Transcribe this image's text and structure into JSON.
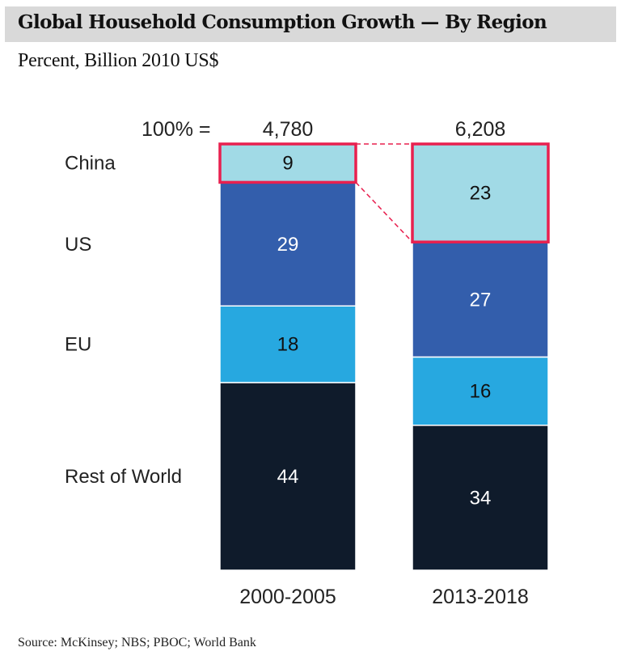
{
  "title": "Global Household Consumption Growth — By Region",
  "subtitle": "Percent, Billion 2010 US$",
  "source": "Source: McKinsey; NBS; PBOC; World Bank",
  "chart_data": {
    "type": "bar",
    "stacked": true,
    "orientation": "vertical",
    "title": "Global Household Consumption Growth — By Region",
    "subtitle": "Percent, Billion 2010 US$",
    "unit": "percent",
    "total_label": "100% =",
    "categories": [
      "2000-2005",
      "2013-2018"
    ],
    "totals": [
      "4,780",
      "6,208"
    ],
    "series": [
      {
        "name": "China",
        "values": [
          9,
          23
        ],
        "color": "#a1dae6",
        "label_color": "#111111",
        "highlighted": true
      },
      {
        "name": "US",
        "values": [
          29,
          27
        ],
        "color": "#335eac",
        "label_color": "#ffffff"
      },
      {
        "name": "EU",
        "values": [
          18,
          16
        ],
        "color": "#27a8e0",
        "label_color": "#111111"
      },
      {
        "name": "Rest of World",
        "values": [
          44,
          34
        ],
        "color": "#0f1b2b",
        "label_color": "#ffffff"
      }
    ],
    "highlight_color": "#e8204f",
    "ylim": [
      0,
      100
    ],
    "grid": false,
    "legend": "left-labels"
  }
}
